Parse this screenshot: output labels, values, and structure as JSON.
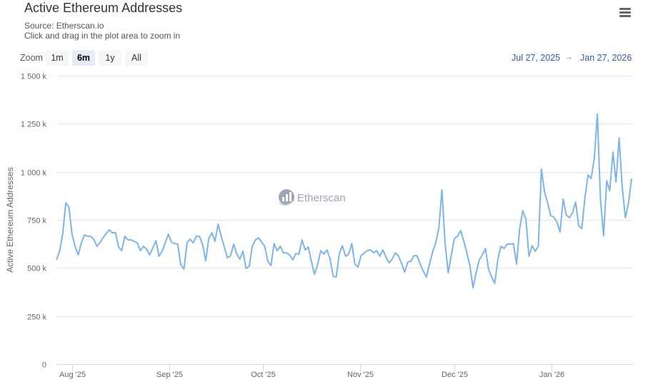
{
  "header": {
    "title": "Active Ethereum Addresses",
    "source": "Source: Etherscan.io",
    "hint": "Click and drag in the plot area to zoom in",
    "menu_icon": "hamburger-menu-icon"
  },
  "range_selector": {
    "zoom_label": "Zoom",
    "buttons": [
      {
        "label": "1m",
        "active": false
      },
      {
        "label": "6m",
        "active": true
      },
      {
        "label": "1y",
        "active": false
      },
      {
        "label": "All",
        "active": false
      }
    ],
    "from": "Jul 27, 2025",
    "arrow": "→",
    "to": "Jan 27, 2026"
  },
  "watermark": {
    "text": "Etherscan",
    "icon": "etherscan-logo-icon"
  },
  "colors": {
    "line": "#7cb5ec",
    "grid": "#e6e6e6",
    "axis": "#ccd6eb",
    "range_text": "#335cad",
    "active_button": "#e6ebf5"
  },
  "chart_data": {
    "type": "line",
    "title": "Active Ethereum Addresses",
    "subtitle": "Source: Etherscan.io",
    "xlabel": "",
    "ylabel": "Active Ethereum Addresses",
    "ylim": [
      0,
      1500000
    ],
    "yticks": [
      "0",
      "250 k",
      "500 k",
      "750 k",
      "1 000 k",
      "1 250 k",
      "1 500 k"
    ],
    "xticks": [
      "Aug '25",
      "Sep '25",
      "Oct '25",
      "Nov '25",
      "Dec '25",
      "Jan '26"
    ],
    "x_range": [
      "Jul 27, 2025",
      "Jan 27, 2026"
    ],
    "grid": true,
    "legend": false,
    "series": [
      {
        "name": "Active Ethereum Addresses",
        "unit": "k",
        "values": [
          542,
          587,
          676,
          839,
          817,
          676,
          613,
          568,
          631,
          672,
          665,
          665,
          650,
          613,
          631,
          657,
          680,
          698,
          683,
          683,
          609,
          590,
          665,
          646,
          646,
          639,
          631,
          590,
          613,
          598,
          568,
          605,
          642,
          561,
          587,
          631,
          676,
          635,
          627,
          624,
          516,
          494,
          631,
          650,
          631,
          665,
          665,
          624,
          538,
          653,
          683,
          639,
          728,
          665,
          609,
          553,
          564,
          624,
          572,
          546,
          587,
          498,
          509,
          613,
          646,
          657,
          635,
          613,
          535,
          512,
          627,
          590,
          613,
          579,
          579,
          568,
          542,
          575,
          572,
          646,
          594,
          609,
          535,
          468,
          516,
          590,
          572,
          594,
          549,
          457,
          453,
          575,
          616,
          561,
          572,
          627,
          520,
          505,
          564,
          579,
          590,
          594,
          579,
          590,
          561,
          594,
          557,
          527,
          546,
          579,
          564,
          524,
          479,
          531,
          535,
          564,
          564,
          520,
          483,
          453,
          520,
          583,
          631,
          705,
          906,
          631,
          475,
          564,
          653,
          665,
          694,
          642,
          579,
          512,
          397,
          475,
          542,
          568,
          601,
          494,
          453,
          420,
          546,
          613,
          601,
          624,
          624,
          627,
          520,
          705,
          798,
          754,
          561,
          616,
          587,
          613,
          1014,
          895,
          839,
          772,
          765,
          739,
          687,
          858,
          776,
          761,
          787,
          843,
          720,
          705,
          865,
          984,
          965,
          1069,
          1300,
          854,
          668,
          954,
          902,
          1103,
          947,
          1177,
          921,
          761,
          835,
          965
        ]
      }
    ]
  }
}
